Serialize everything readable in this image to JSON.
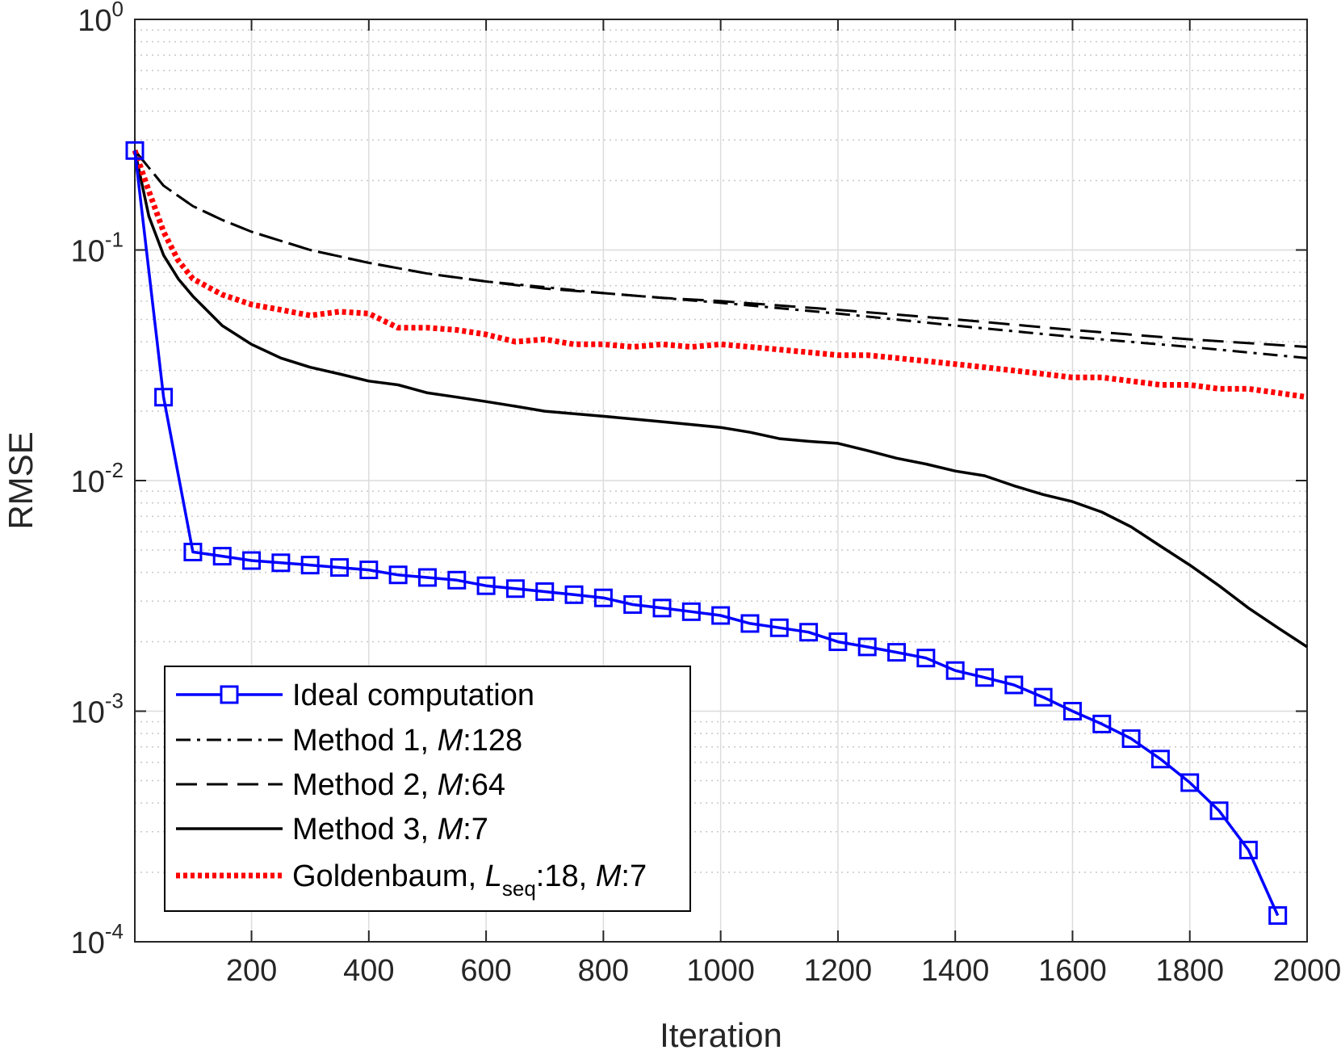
{
  "chart_data": {
    "type": "line",
    "xscale": "linear",
    "yscale": "log",
    "xlabel": "Iteration",
    "ylabel": "RMSE",
    "xlim": [
      1,
      2000
    ],
    "ylim": [
      0.0001,
      1
    ],
    "grid": true,
    "minor_grid": true,
    "legend_position": "bottom-left",
    "xticks": [
      200,
      400,
      600,
      800,
      1000,
      1200,
      1400,
      1600,
      1800,
      2000
    ],
    "xtick_labels": [
      "200",
      "400",
      "600",
      "800",
      "1000",
      "1200",
      "1400",
      "1600",
      "1800",
      "2000"
    ],
    "yticks": [
      {
        "value": 1,
        "base": "10",
        "exp": "0"
      },
      {
        "value": 0.1,
        "base": "10",
        "exp": "-1"
      },
      {
        "value": 0.01,
        "base": "10",
        "exp": "-2"
      },
      {
        "value": 0.001,
        "base": "10",
        "exp": "-3"
      },
      {
        "value": 0.0001,
        "base": "10",
        "exp": "-4"
      }
    ],
    "series": [
      {
        "name": "Ideal computation",
        "legend_parts": [
          "Ideal computation"
        ],
        "color": "#0000ff",
        "style": "solid",
        "marker": "square",
        "x": [
          1,
          50,
          100,
          150,
          200,
          250,
          300,
          350,
          400,
          450,
          500,
          550,
          600,
          650,
          700,
          750,
          800,
          850,
          900,
          950,
          1000,
          1050,
          1100,
          1150,
          1200,
          1250,
          1300,
          1350,
          1400,
          1450,
          1500,
          1550,
          1600,
          1650,
          1700,
          1750,
          1800,
          1850,
          1900,
          1950
        ],
        "y": [
          0.27,
          0.023,
          0.0049,
          0.0047,
          0.0045,
          0.0044,
          0.0043,
          0.0042,
          0.0041,
          0.0039,
          0.0038,
          0.0037,
          0.0035,
          0.0034,
          0.0033,
          0.0032,
          0.0031,
          0.0029,
          0.0028,
          0.0027,
          0.0026,
          0.0024,
          0.0023,
          0.0022,
          0.002,
          0.0019,
          0.0018,
          0.0017,
          0.0015,
          0.0014,
          0.0013,
          0.00115,
          0.001,
          0.00088,
          0.00076,
          0.00062,
          0.00049,
          0.00037,
          0.00025,
          0.00013
        ]
      },
      {
        "name": "Method 1, M:128",
        "legend_parts": [
          "Method 1, ",
          "M",
          ":128"
        ],
        "color": "#000000",
        "style": "dashdot",
        "marker": "none",
        "x": [
          1,
          50,
          100,
          150,
          200,
          300,
          400,
          500,
          600,
          700,
          800,
          900,
          1000,
          1200,
          1400,
          1600,
          1800,
          2000
        ],
        "y": [
          0.27,
          0.19,
          0.155,
          0.135,
          0.12,
          0.1,
          0.088,
          0.079,
          0.073,
          0.069,
          0.065,
          0.062,
          0.059,
          0.053,
          0.047,
          0.042,
          0.038,
          0.034
        ]
      },
      {
        "name": "Method 2, M:64",
        "legend_parts": [
          "Method 2, ",
          "M",
          ":64"
        ],
        "color": "#000000",
        "style": "dashed",
        "marker": "none",
        "x": [
          1,
          50,
          100,
          150,
          200,
          300,
          400,
          500,
          600,
          700,
          800,
          900,
          1000,
          1200,
          1400,
          1600,
          1800,
          2000
        ],
        "y": [
          0.27,
          0.19,
          0.155,
          0.135,
          0.12,
          0.1,
          0.088,
          0.079,
          0.073,
          0.068,
          0.065,
          0.062,
          0.06,
          0.055,
          0.05,
          0.045,
          0.041,
          0.038
        ]
      },
      {
        "name": "Method 3, M:7",
        "legend_parts": [
          "Method 3, ",
          "M",
          ":7"
        ],
        "color": "#000000",
        "style": "solid",
        "marker": "none",
        "x": [
          1,
          25,
          50,
          75,
          100,
          150,
          200,
          250,
          300,
          350,
          400,
          450,
          500,
          550,
          600,
          650,
          700,
          750,
          800,
          850,
          900,
          950,
          1000,
          1050,
          1100,
          1150,
          1200,
          1250,
          1300,
          1350,
          1400,
          1450,
          1500,
          1550,
          1600,
          1650,
          1700,
          1750,
          1800,
          1850,
          1900,
          1950,
          2000
        ],
        "y": [
          0.27,
          0.14,
          0.095,
          0.075,
          0.063,
          0.047,
          0.039,
          0.034,
          0.031,
          0.029,
          0.027,
          0.026,
          0.024,
          0.023,
          0.022,
          0.021,
          0.02,
          0.0195,
          0.019,
          0.0185,
          0.018,
          0.0175,
          0.017,
          0.0162,
          0.0152,
          0.0148,
          0.0145,
          0.0135,
          0.0125,
          0.0118,
          0.011,
          0.0105,
          0.0095,
          0.0087,
          0.0081,
          0.0073,
          0.0063,
          0.0052,
          0.0043,
          0.0035,
          0.0028,
          0.0023,
          0.0019
        ]
      },
      {
        "name": "Goldenbaum, L_seq:18, M:7",
        "legend_parts": [
          "Goldenbaum, ",
          "L",
          "seq",
          ":18, ",
          "M",
          ":7"
        ],
        "color": "#ff0000",
        "style": "dotted",
        "marker": "none",
        "x": [
          1,
          25,
          50,
          75,
          100,
          150,
          200,
          250,
          300,
          350,
          400,
          450,
          500,
          550,
          600,
          650,
          700,
          750,
          800,
          850,
          900,
          950,
          1000,
          1050,
          1100,
          1150,
          1200,
          1250,
          1300,
          1350,
          1400,
          1450,
          1500,
          1550,
          1600,
          1650,
          1700,
          1750,
          1800,
          1850,
          1900,
          1950,
          2000
        ],
        "y": [
          0.27,
          0.18,
          0.12,
          0.09,
          0.075,
          0.064,
          0.058,
          0.055,
          0.052,
          0.054,
          0.053,
          0.046,
          0.046,
          0.045,
          0.043,
          0.04,
          0.041,
          0.039,
          0.039,
          0.038,
          0.039,
          0.038,
          0.039,
          0.038,
          0.037,
          0.036,
          0.035,
          0.035,
          0.034,
          0.033,
          0.032,
          0.031,
          0.03,
          0.029,
          0.028,
          0.028,
          0.027,
          0.026,
          0.026,
          0.025,
          0.025,
          0.024,
          0.023
        ]
      }
    ]
  }
}
